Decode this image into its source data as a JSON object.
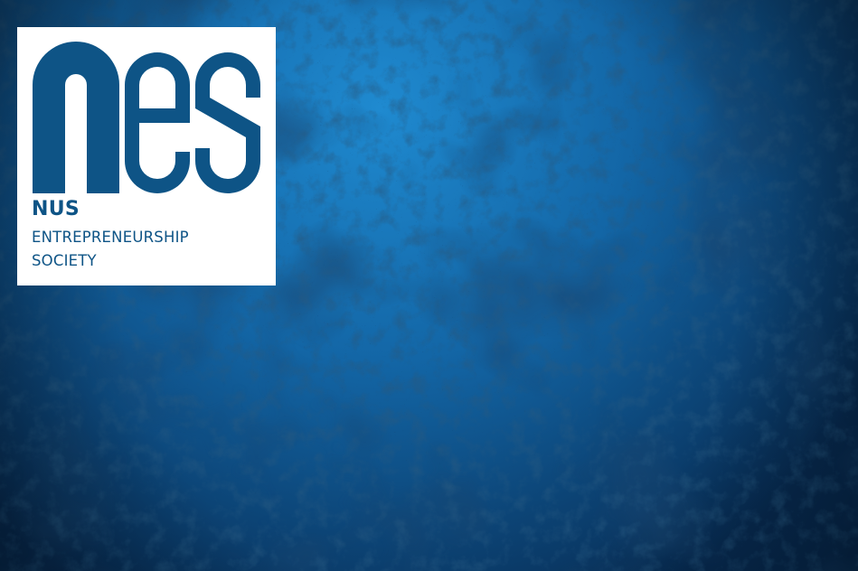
{
  "background": {
    "icon": "textured-blue-background",
    "colors": {
      "base": "#0f4f86",
      "highlight": "#1e84c9",
      "shadow": "#061e3a"
    }
  },
  "logo": {
    "wordmark": "nes",
    "icon": "nes-wordmark-logo",
    "colors": {
      "card": "#ffffff",
      "brand": "#0e5486"
    },
    "name_lines": [
      "NUS",
      "ENTREPRENEURSHIP",
      "SOCIETY"
    ]
  }
}
